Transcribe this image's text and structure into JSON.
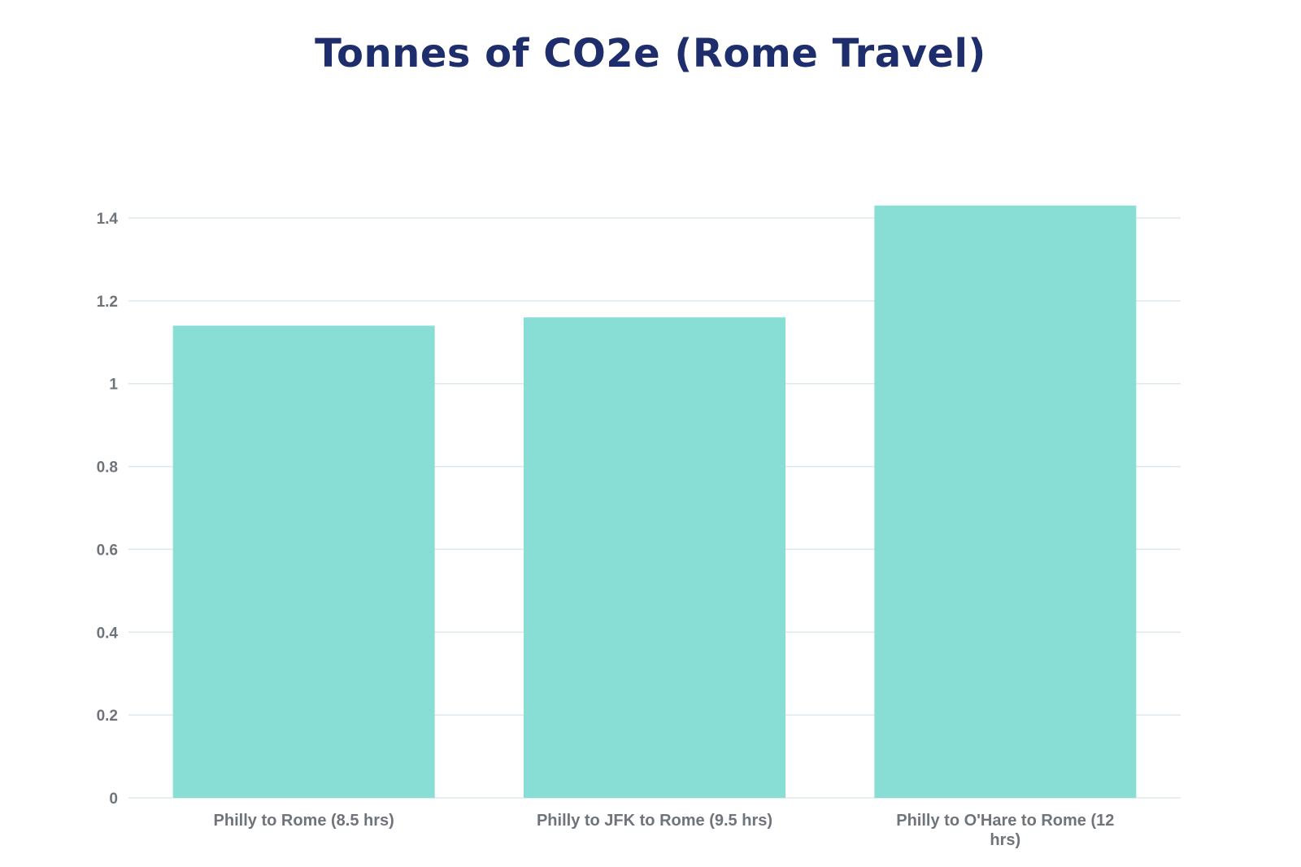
{
  "chart_data": {
    "type": "bar",
    "title": "Tonnes of CO2e (Rome Travel)",
    "xlabel": "",
    "ylabel": "",
    "categories": [
      "Philly to Rome (8.5 hrs)",
      "Philly to JFK to Rome (9.5 hrs)",
      "Philly to O'Hare to Rome (12 hrs)"
    ],
    "category_lines": [
      [
        "Philly to Rome (8.5 hrs)"
      ],
      [
        "Philly to JFK to Rome (9.5 hrs)"
      ],
      [
        "Philly to O'Hare to Rome (12",
        "hrs)"
      ]
    ],
    "values": [
      1.14,
      1.16,
      1.43
    ],
    "ylim": [
      0,
      1.4
    ],
    "yticks": [
      0,
      0.2,
      0.4,
      0.6,
      0.8,
      1,
      1.2,
      1.4
    ],
    "ytick_labels": [
      "0",
      "0.2",
      "0.4",
      "0.6",
      "0.8",
      "1",
      "1.2",
      "1.4"
    ],
    "grid": true,
    "legend": "none",
    "colors": {
      "bar": "#88ddd4",
      "grid": "#dde8ee",
      "title": "#1e2d6b",
      "tick": "#6f747b"
    }
  }
}
